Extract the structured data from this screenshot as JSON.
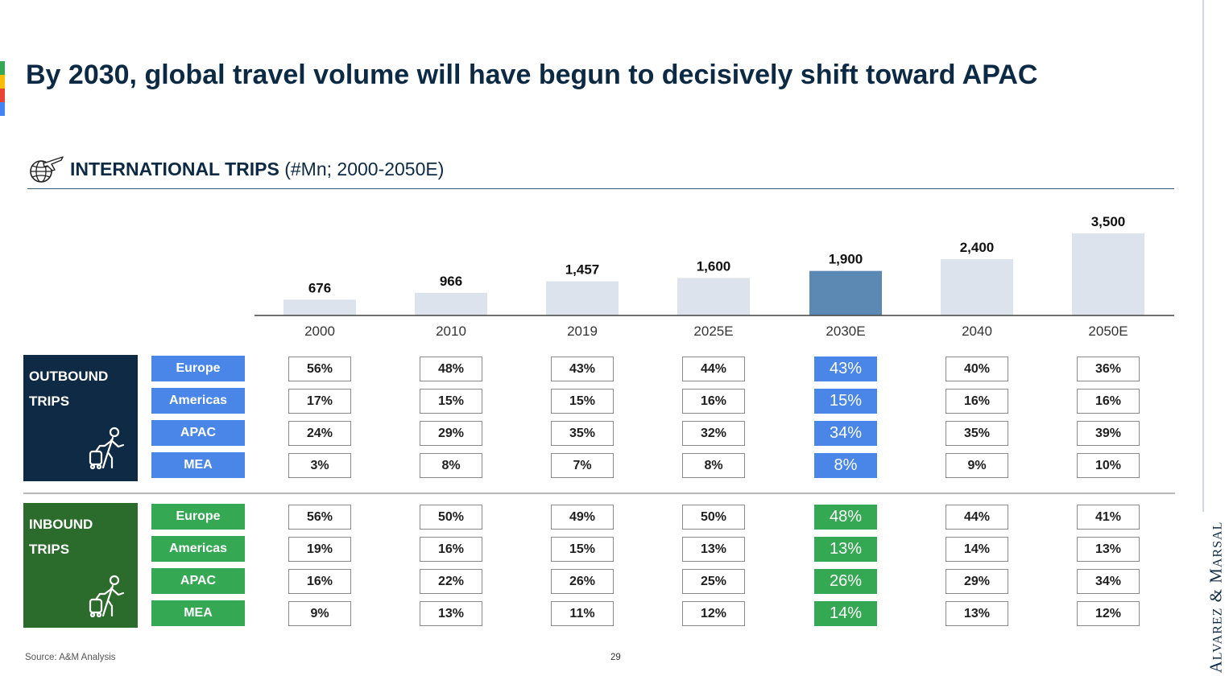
{
  "accent_colors": [
    "#34a853",
    "#fbbc04",
    "#ea4335",
    "#4285f4"
  ],
  "title": "By 2030, global travel volume will have begun to decisively shift toward APAC",
  "section": {
    "icon": "globe-airplane-icon",
    "label_bold": "INTERNATIONAL TRIPS",
    "label_rest": " (#Mn; 2000-2050E)"
  },
  "chart_data": {
    "type": "bar",
    "categories": [
      "2000",
      "2010",
      "2019",
      "2025E",
      "2030E",
      "2040",
      "2050E"
    ],
    "values": [
      676,
      966,
      1457,
      1600,
      1900,
      2400,
      3500
    ],
    "value_labels": [
      "676",
      "966",
      "1,457",
      "1,600",
      "1,900",
      "2,400",
      "3,500"
    ],
    "highlight_index": 4,
    "colors": {
      "bar": "#dce3ec",
      "highlight": "#5b89b4",
      "axis": "#444444"
    },
    "title": "",
    "xlabel": "",
    "ylabel": "",
    "ylim": [
      0,
      3500
    ],
    "grid": false
  },
  "outbound": {
    "line1": "OUTBOUND",
    "line2": "TRIPS",
    "icon": "traveler-walking-icon",
    "color": "#0e2a45",
    "region_color": "#4a86e8",
    "highlight_color": "#4a86e8",
    "rows": [
      {
        "region": "Europe",
        "values": [
          "56%",
          "48%",
          "43%",
          "44%",
          "43%",
          "40%",
          "36%"
        ]
      },
      {
        "region": "Americas",
        "values": [
          "17%",
          "15%",
          "15%",
          "16%",
          "15%",
          "16%",
          "16%"
        ]
      },
      {
        "region": "APAC",
        "values": [
          "24%",
          "29%",
          "35%",
          "32%",
          "34%",
          "35%",
          "39%"
        ]
      },
      {
        "region": "MEA",
        "values": [
          "3%",
          "8%",
          "7%",
          "8%",
          "8%",
          "9%",
          "10%"
        ]
      }
    ]
  },
  "inbound": {
    "line1": "INBOUND",
    "line2": "TRIPS",
    "icon": "traveler-walking-icon",
    "color": "#2b6b2b",
    "region_color": "#34a853",
    "highlight_color": "#34a853",
    "rows": [
      {
        "region": "Europe",
        "values": [
          "56%",
          "50%",
          "49%",
          "50%",
          "48%",
          "44%",
          "41%"
        ]
      },
      {
        "region": "Americas",
        "values": [
          "19%",
          "16%",
          "15%",
          "13%",
          "13%",
          "14%",
          "13%"
        ]
      },
      {
        "region": "APAC",
        "values": [
          "16%",
          "22%",
          "26%",
          "25%",
          "26%",
          "29%",
          "34%"
        ]
      },
      {
        "region": "MEA",
        "values": [
          "9%",
          "13%",
          "11%",
          "12%",
          "14%",
          "13%",
          "12%"
        ]
      }
    ]
  },
  "footer": {
    "source": "Source: A&M Analysis",
    "page": "29"
  },
  "brand": {
    "first_cap": "A",
    "first_rest": "LVAREZ",
    "amp": " & ",
    "second_cap": "M",
    "second_rest": "ARSAL"
  }
}
